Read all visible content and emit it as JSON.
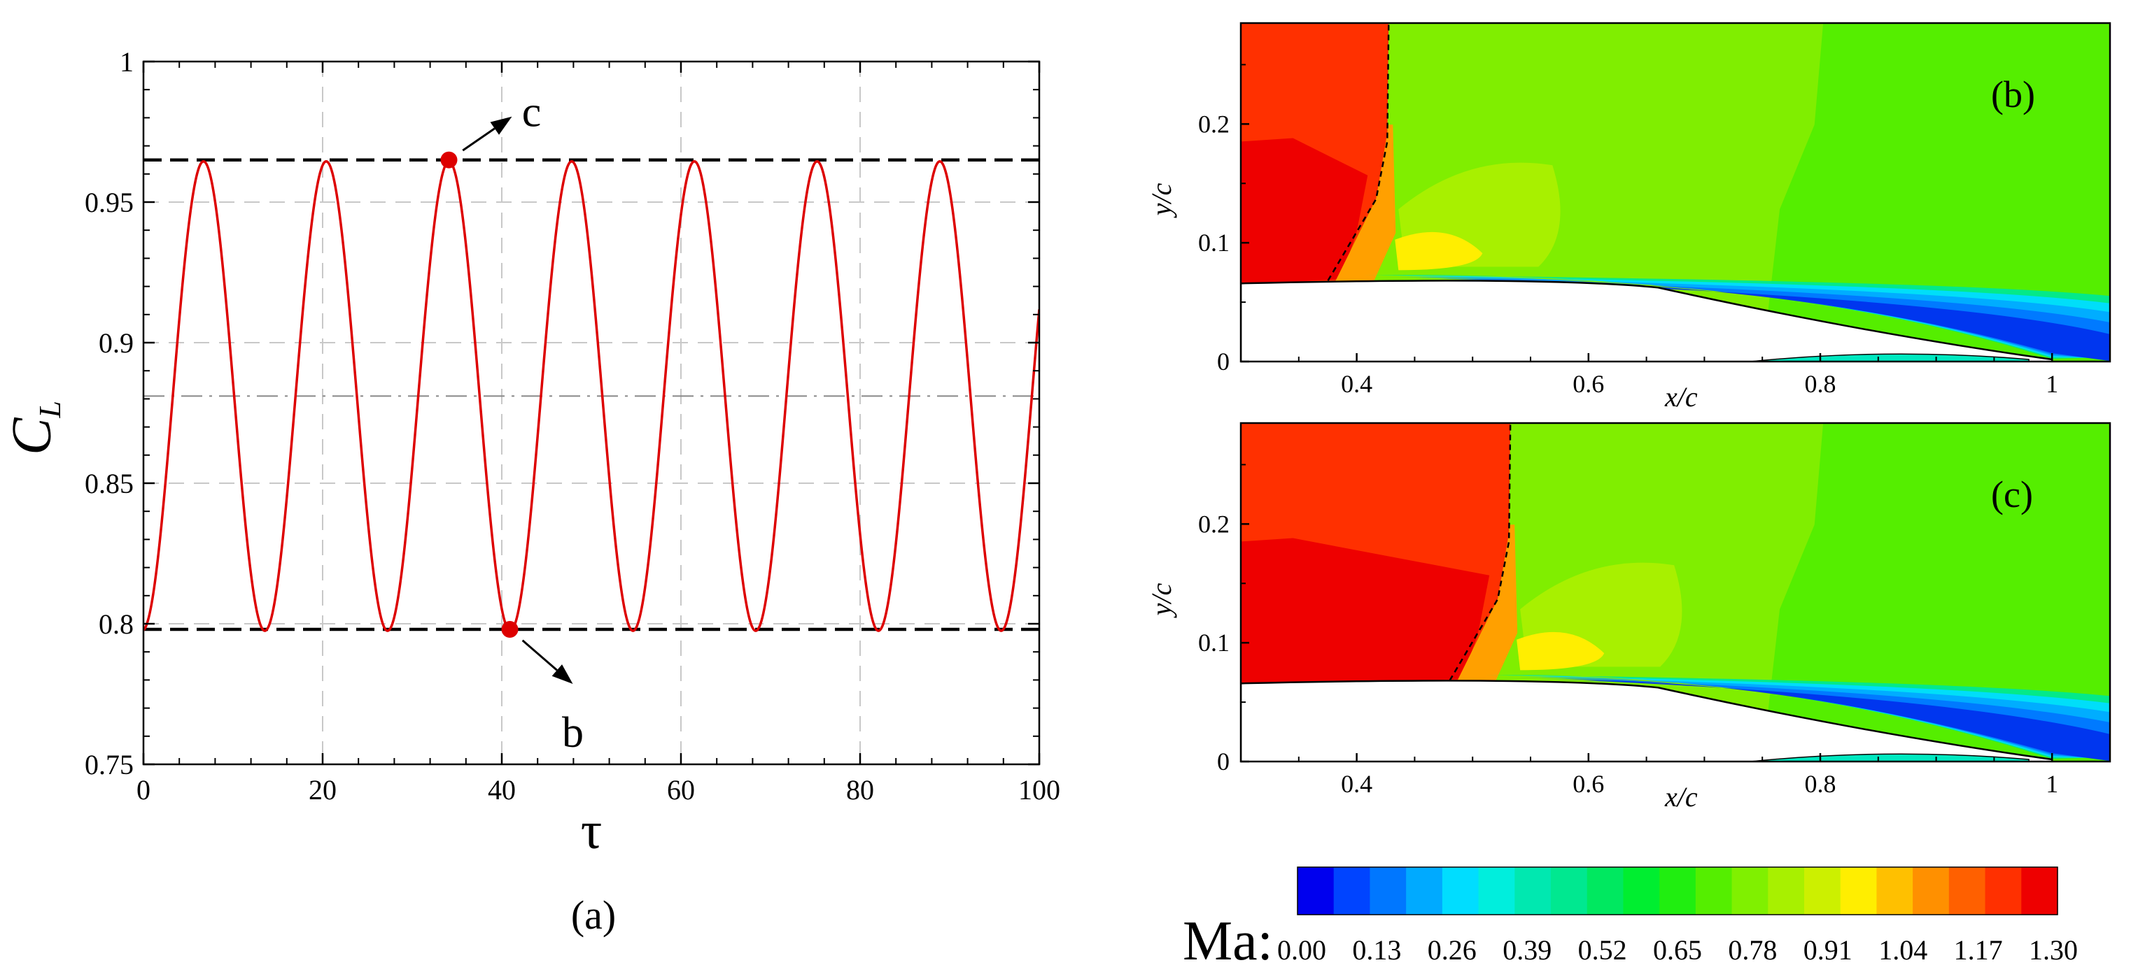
{
  "chart_data": [
    {
      "panel": "(a)",
      "type": "line",
      "xlabel": "τ",
      "ylabel_main": "C",
      "ylabel_sub": "L",
      "xlim": [
        0,
        100
      ],
      "ylim": [
        0.75,
        1.0
      ],
      "xticks": [
        0,
        20,
        40,
        60,
        80,
        100
      ],
      "xtick_labels": [
        "0",
        "20",
        "40",
        "60",
        "80",
        "100"
      ],
      "yticks": [
        0.75,
        0.8,
        0.85,
        0.9,
        0.95,
        1.0
      ],
      "ytick_labels": [
        "0.75",
        "0.8",
        "0.85",
        "0.9",
        "0.95",
        "1"
      ],
      "grid": "dashed",
      "series": [
        {
          "name": "C_L",
          "color": "#e00000",
          "mean": 0.881,
          "amplitude": 0.0835,
          "period": 13.7,
          "first_peak_tau": 6.7,
          "x": [
            0,
            6.7,
            13.55,
            20.4,
            27.25,
            34.1,
            40.95,
            47.8,
            54.65,
            61.5,
            68.35,
            75.2,
            82.05,
            88.9,
            95.75,
            100
          ],
          "y": [
            0.803,
            0.964,
            0.798,
            0.964,
            0.798,
            0.964,
            0.798,
            0.964,
            0.798,
            0.964,
            0.798,
            0.964,
            0.798,
            0.964,
            0.798,
            0.908
          ]
        }
      ],
      "reference_lines": [
        {
          "name": "max",
          "value": 0.965,
          "style": "dashed",
          "color": "#000000"
        },
        {
          "name": "mean",
          "value": 0.881,
          "style": "dash-dot",
          "color": "#888888"
        },
        {
          "name": "min",
          "value": 0.798,
          "style": "dashed",
          "color": "#000000"
        }
      ],
      "annotations": [
        {
          "label": "c",
          "tau": 34.1,
          "value": 0.965,
          "direction": "up-right"
        },
        {
          "label": "b",
          "tau": 40.9,
          "value": 0.798,
          "direction": "down-right"
        }
      ],
      "caption": "(a)"
    },
    {
      "panel": "(b)",
      "type": "contour",
      "label": "(b)",
      "xlabel": "x/c",
      "ylabel": "y/c",
      "xlim": [
        0.3,
        1.05
      ],
      "ylim": [
        0,
        0.285
      ],
      "xticks": [
        0.4,
        0.6,
        0.8,
        1.0
      ],
      "xtick_labels": [
        "0.4",
        "0.6",
        "0.8",
        "1"
      ],
      "yticks": [
        0,
        0.1,
        0.2
      ],
      "ytick_labels": [
        "0",
        "0.1",
        "0.2"
      ],
      "shock_position_x": 0.43
    },
    {
      "panel": "(c)",
      "type": "contour",
      "label": "(c)",
      "xlabel": "x/c",
      "ylabel": "y/c",
      "xlim": [
        0.3,
        1.05
      ],
      "ylim": [
        0,
        0.285
      ],
      "xticks": [
        0.4,
        0.6,
        0.8,
        1.0
      ],
      "xtick_labels": [
        "0.4",
        "0.6",
        "0.8",
        "1"
      ],
      "yticks": [
        0,
        0.1,
        0.2
      ],
      "ytick_labels": [
        "0",
        "0.1",
        "0.2"
      ],
      "shock_position_x": 0.535
    }
  ],
  "colorbar": {
    "title": "Ma:",
    "labels": [
      "0.00",
      "0.13",
      "0.26",
      "0.39",
      "0.52",
      "0.65",
      "0.78",
      "0.91",
      "1.04",
      "1.17",
      "1.30"
    ],
    "colors": [
      "#0000ee",
      "#0044ff",
      "#0077ff",
      "#00aaff",
      "#00ddff",
      "#00eedd",
      "#00e8b0",
      "#00e890",
      "#00e860",
      "#00ee30",
      "#20ee10",
      "#55ee00",
      "#80f000",
      "#a8f000",
      "#ccf000",
      "#ffee00",
      "#ffc000",
      "#ff9000",
      "#ff6000",
      "#ff3000",
      "#ee0000"
    ]
  }
}
